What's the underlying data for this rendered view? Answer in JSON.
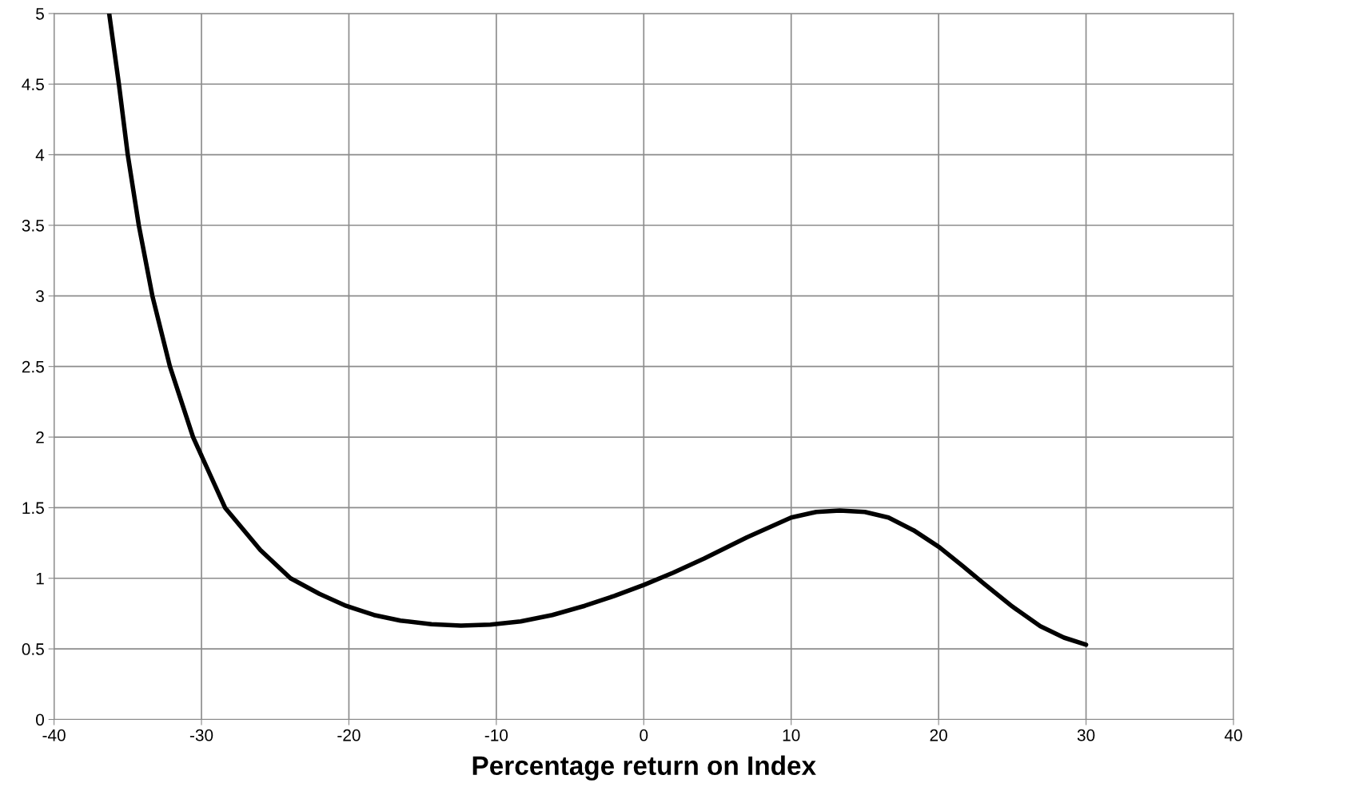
{
  "chart_data": {
    "type": "line",
    "xlabel": "Percentage return on Index",
    "series": [
      {
        "color": "#000000",
        "x": [
          -36.26,
          -35.6,
          -35.0,
          -34.25,
          -33.33,
          -32.14,
          -30.57,
          -28.4,
          -26.0,
          -23.96,
          -22.0,
          -20.2,
          -18.3,
          -16.5,
          -14.4,
          -12.4,
          -10.4,
          -8.35,
          -6.2,
          -4.0,
          -2.0,
          0,
          2.0,
          4.1,
          7.0,
          10.0,
          11.7,
          13.3,
          15.0,
          16.6,
          18.3,
          20.05,
          21.6,
          23.1,
          25.0,
          26.9,
          28.5,
          30.0
        ],
        "values": [
          5.0,
          4.5,
          4.0,
          3.5,
          3.0,
          2.5,
          2.0,
          1.5,
          1.2,
          1.0,
          0.89,
          0.805,
          0.74,
          0.7,
          0.675,
          0.665,
          0.672,
          0.695,
          0.74,
          0.805,
          0.875,
          0.953,
          1.04,
          1.14,
          1.29,
          1.43,
          1.47,
          1.48,
          1.47,
          1.43,
          1.34,
          1.22,
          1.09,
          0.96,
          0.8,
          0.66,
          0.58,
          0.53
        ]
      }
    ],
    "xlim": [
      -40,
      40
    ],
    "xticks": [
      -40,
      -30,
      -20,
      -10,
      0,
      10,
      20,
      30,
      40
    ],
    "ylim": [
      0,
      5
    ],
    "yticks": [
      0,
      0.5,
      1,
      1.5,
      2,
      2.5,
      3,
      3.5,
      4,
      4.5,
      5
    ],
    "grid": true,
    "marker": "none",
    "line_style": "solid"
  }
}
